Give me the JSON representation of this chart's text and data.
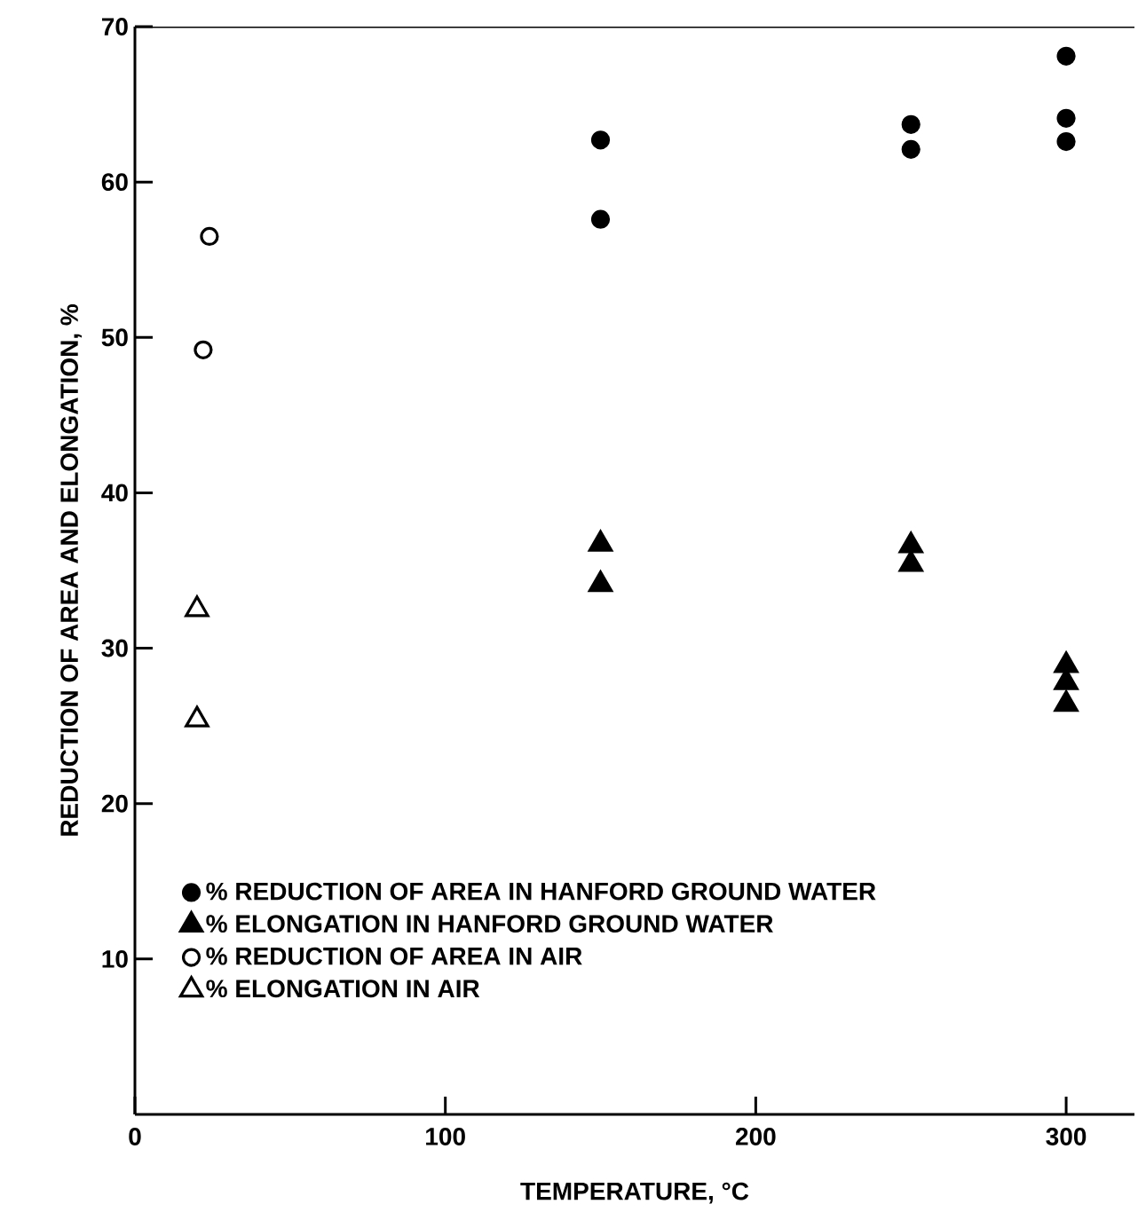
{
  "chart_data": {
    "type": "scatter",
    "xlabel": "TEMPERATURE, °C",
    "ylabel": "REDUCTION OF AREA AND ELONGATION, %",
    "xlim": [
      0,
      322
    ],
    "ylim": [
      0,
      70
    ],
    "xticks": [
      0,
      100,
      200,
      300
    ],
    "yticks": [
      10,
      20,
      30,
      40,
      50,
      60,
      70
    ],
    "legend": "bottom left",
    "grid": false,
    "series": [
      {
        "name": "% REDUCTION OF AREA IN HANFORD GROUND WATER",
        "color": "#000000",
        "marker": "circle",
        "x": [
          150,
          150,
          250,
          250,
          300,
          300,
          300
        ],
        "values": [
          62.7,
          57.6,
          63.7,
          62.1,
          68.1,
          64.1,
          62.6
        ]
      },
      {
        "name": "% ELONGATION IN HANFORD GROUND WATER",
        "color": "#000000",
        "marker": "triangle",
        "x": [
          150,
          150,
          250,
          250,
          300,
          300,
          300
        ],
        "values": [
          36.7,
          34.1,
          36.6,
          35.4,
          28.9,
          27.8,
          26.4
        ]
      },
      {
        "name": "% REDUCTION OF AREA IN AIR",
        "color": "#ffffff",
        "marker": "circle",
        "x": [
          24,
          22
        ],
        "values": [
          56.5,
          49.2
        ]
      },
      {
        "name": "% ELONGATION IN AIR",
        "color": "#ffffff",
        "marker": "triangle",
        "x": [
          20,
          20
        ],
        "values": [
          32.5,
          25.4
        ]
      }
    ]
  }
}
